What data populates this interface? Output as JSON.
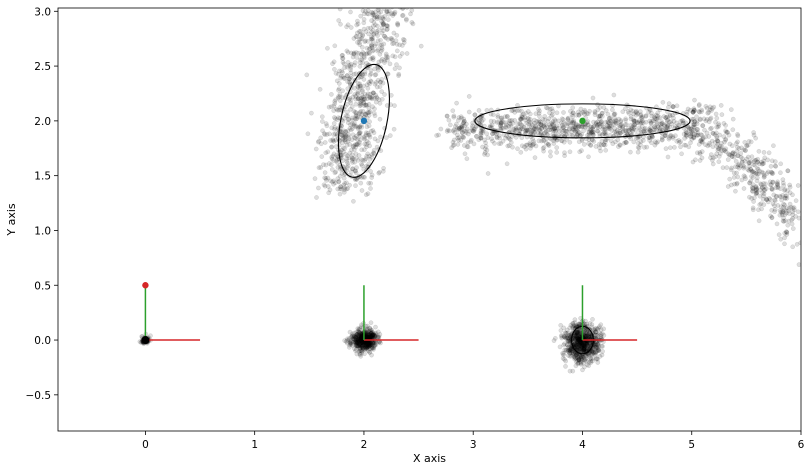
{
  "chart_data": {
    "type": "scatter",
    "title": "",
    "xlabel": "X axis",
    "ylabel": "Y axis",
    "xlim": [
      -0.8,
      6.0
    ],
    "ylim": [
      -0.83,
      3.03
    ],
    "xticks": [
      0,
      1,
      2,
      3,
      4,
      5,
      6
    ],
    "yticks": [
      -0.5,
      0.0,
      0.5,
      1.0,
      1.5,
      2.0,
      2.5,
      3.0
    ],
    "xtick_labels": [
      "0",
      "1",
      "2",
      "3",
      "4",
      "5",
      "6"
    ],
    "ytick_labels": [
      "−0.5",
      "0.0",
      "0.5",
      "1.0",
      "1.5",
      "2.0",
      "2.5",
      "3.0"
    ],
    "grid": false,
    "colors": {
      "particles": "#000000",
      "x_axis": "#d62728",
      "y_axis": "#2ca02c",
      "mean_a": "#1f77b4",
      "mean_b": "#2ca02c",
      "origin_marker": "#d62728"
    },
    "particle_clouds": [
      {
        "name": "",
        "shape": "cluster",
        "center": [
          0.0,
          0.0
        ],
        "spread": [
          0.02,
          0.02
        ],
        "count": 60,
        "seed": 11
      },
      {
        "name": "",
        "shape": "cluster",
        "center": [
          2.0,
          0.0
        ],
        "spread": [
          0.06,
          0.05
        ],
        "count": 500,
        "seed": 23
      },
      {
        "name": "",
        "shape": "cluster",
        "center": [
          4.0,
          -0.02
        ],
        "spread": [
          0.08,
          0.09
        ],
        "count": 700,
        "seed": 37
      },
      {
        "name": "",
        "shape": "arc",
        "center": [
          2.0,
          2.0
        ],
        "spread": [
          0.15,
          0.35
        ],
        "count": 800,
        "seed": 53
      },
      {
        "name": "",
        "shape": "banana",
        "center": [
          4.0,
          2.0
        ],
        "spread": [
          0.55,
          0.1
        ],
        "count": 1400,
        "seed": 71
      }
    ],
    "covariance_ellipses": [
      {
        "center": [
          2.0,
          2.0
        ],
        "width": 0.42,
        "height": 1.05,
        "angle_deg": -12
      },
      {
        "center": [
          4.0,
          2.0
        ],
        "width": 1.97,
        "height": 0.31,
        "angle_deg": 0
      },
      {
        "center": [
          4.0,
          0.0
        ],
        "width": 0.2,
        "height": 0.25,
        "angle_deg": 0
      },
      {
        "center": [
          2.0,
          0.0
        ],
        "width": 0.08,
        "height": 0.06,
        "angle_deg": 0
      }
    ],
    "frames": [
      {
        "origin": [
          0.0,
          0.0
        ],
        "x_end": [
          0.5,
          0.0
        ],
        "y_end": [
          0.0,
          0.5
        ]
      },
      {
        "origin": [
          2.0,
          0.0
        ],
        "x_end": [
          2.5,
          0.0
        ],
        "y_end": [
          2.0,
          0.5
        ]
      },
      {
        "origin": [
          4.0,
          0.0
        ],
        "x_end": [
          4.5,
          0.0
        ],
        "y_end": [
          4.0,
          0.5
        ]
      }
    ],
    "mean_points": [
      {
        "x": 2.0,
        "y": 2.0,
        "color": "#1f77b4"
      },
      {
        "x": 4.0,
        "y": 2.0,
        "color": "#2ca02c"
      },
      {
        "x": 0.0,
        "y": 0.5,
        "color": "#d62728"
      },
      {
        "x": 0.0,
        "y": 0.0,
        "color": "#000000"
      }
    ]
  }
}
